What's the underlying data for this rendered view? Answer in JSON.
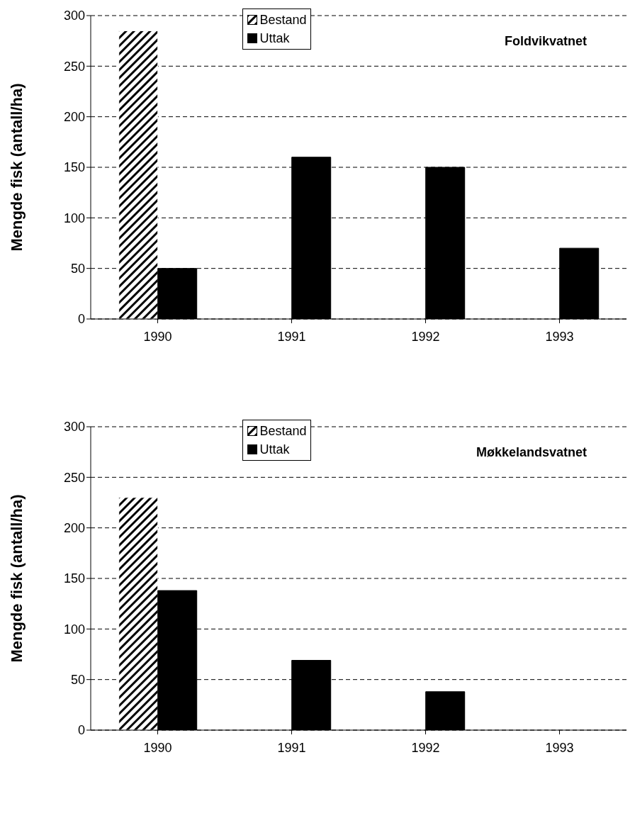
{
  "chart_data": [
    {
      "type": "bar",
      "title": "Foldvikvatnet",
      "ylabel": "Mengde fisk (antall/ha)",
      "categories": [
        "1990",
        "1991",
        "1992",
        "1993"
      ],
      "series": [
        {
          "name": "Bestand",
          "color": "#ffffff",
          "values": [
            285,
            null,
            null,
            null
          ]
        },
        {
          "name": "Uttak",
          "color": "#000000",
          "values": [
            50,
            160,
            150,
            70
          ]
        }
      ],
      "ylim": [
        0,
        300
      ],
      "yticks": [
        0,
        50,
        100,
        150,
        200,
        250,
        300
      ],
      "grid": "y",
      "legend": "top"
    },
    {
      "type": "bar",
      "title": "Møkkelandsvatnet",
      "ylabel": "Mengde fisk (antall/ha)",
      "categories": [
        "1990",
        "1991",
        "1992",
        "1993"
      ],
      "series": [
        {
          "name": "Bestand",
          "color": "#ffffff",
          "values": [
            230,
            null,
            null,
            null
          ]
        },
        {
          "name": "Uttak",
          "color": "#000000",
          "values": [
            138,
            69,
            38,
            null
          ]
        }
      ],
      "ylim": [
        0,
        300
      ],
      "yticks": [
        0,
        50,
        100,
        150,
        200,
        250,
        300
      ],
      "grid": "y",
      "legend": "top"
    }
  ]
}
